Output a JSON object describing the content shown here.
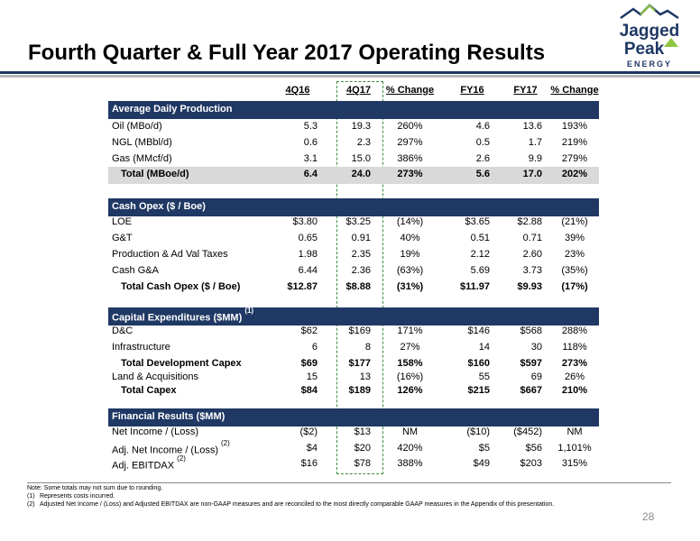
{
  "title": "Fourth Quarter & Full Year 2017 Operating Results",
  "logo": {
    "line1": "Jagged",
    "line2": "Peak",
    "line3": "ENERGY"
  },
  "columns": [
    "4Q16",
    "4Q17",
    "% Change",
    "FY16",
    "FY17",
    "% Change"
  ],
  "sections": {
    "production": {
      "header": "Average Daily Production",
      "rows": [
        {
          "label": "Oil (MBo/d)",
          "values": [
            "5.3",
            "19.3",
            "260%",
            "4.6",
            "13.6",
            "193%"
          ]
        },
        {
          "label": "NGL (MBbl/d)",
          "values": [
            "0.6",
            "2.3",
            "297%",
            "0.5",
            "1.7",
            "219%"
          ]
        },
        {
          "label": "Gas (MMcf/d)",
          "values": [
            "3.1",
            "15.0",
            "386%",
            "2.6",
            "9.9",
            "279%"
          ]
        },
        {
          "label": "Total (MBoe/d)",
          "values": [
            "6.4",
            "24.0",
            "273%",
            "5.6",
            "17.0",
            "202%"
          ]
        }
      ]
    },
    "opex": {
      "header": "Cash Opex ($ / Boe)",
      "rows": [
        {
          "label": "LOE",
          "values": [
            "$3.80",
            "$3.25",
            "(14%)",
            "$3.65",
            "$2.88",
            "(21%)"
          ]
        },
        {
          "label": "G&T",
          "values": [
            "0.65",
            "0.91",
            "40%",
            "0.51",
            "0.71",
            "39%"
          ]
        },
        {
          "label": "Production & Ad Val Taxes",
          "values": [
            "1.98",
            "2.35",
            "19%",
            "2.12",
            "2.60",
            "23%"
          ]
        },
        {
          "label": "Cash G&A",
          "values": [
            "6.44",
            "2.36",
            "(63%)",
            "5.69",
            "3.73",
            "(35%)"
          ]
        },
        {
          "label": "Total Cash Opex ($ / Boe)",
          "values": [
            "$12.87",
            "$8.88",
            "(31%)",
            "$11.97",
            "$9.93",
            "(17%)"
          ]
        }
      ]
    },
    "capex": {
      "header": "Capital Expenditures ($MM)",
      "header_note": "(1)",
      "rows": [
        {
          "label": "D&C",
          "values": [
            "$62",
            "$169",
            "171%",
            "$146",
            "$568",
            "288%"
          ]
        },
        {
          "label": "Infrastructure",
          "values": [
            "6",
            "8",
            "27%",
            "14",
            "30",
            "118%"
          ]
        },
        {
          "label": "Total Development Capex",
          "values": [
            "$69",
            "$177",
            "158%",
            "$160",
            "$597",
            "273%"
          ]
        },
        {
          "label": "Land & Acquisitions",
          "values": [
            "15",
            "13",
            "(16%)",
            "55",
            "69",
            "26%"
          ]
        },
        {
          "label": "Total Capex",
          "values": [
            "$84",
            "$189",
            "126%",
            "$215",
            "$667",
            "210%"
          ]
        }
      ]
    },
    "financial": {
      "header": "Financial Results ($MM)",
      "rows": [
        {
          "label": "Net Income / (Loss)",
          "note": "",
          "values": [
            "($2)",
            "$13",
            "NM",
            "($10)",
            "($452)",
            "NM"
          ]
        },
        {
          "label": "Adj. Net Income / (Loss)",
          "note": "(2)",
          "values": [
            "$4",
            "$20",
            "420%",
            "$5",
            "$56",
            "1,101%"
          ]
        },
        {
          "label": "Adj. EBITDAX",
          "note": "(2)",
          "values": [
            "$16",
            "$78",
            "388%",
            "$49",
            "$203",
            "315%"
          ]
        }
      ]
    }
  },
  "notes": {
    "line0": "Note: Some totals may not sum due to rounding.",
    "n1_num": "(1)",
    "n1_text": "Represents costs incurred.",
    "n2_num": "(2)",
    "n2_text": "Adjusted Net Income / (Loss) and Adjusted EBITDAX are non-GAAP measures and are reconciled to the most directly comparable GAAP measures in the Appendix of this presentation."
  },
  "page_number": "28",
  "colors": {
    "navy": "#1f3864",
    "total_bg": "#d9d9d9",
    "highlight_dash": "#3c8c3c",
    "logo_blue": "#1f3864",
    "logo_green": "#8dc63f"
  }
}
